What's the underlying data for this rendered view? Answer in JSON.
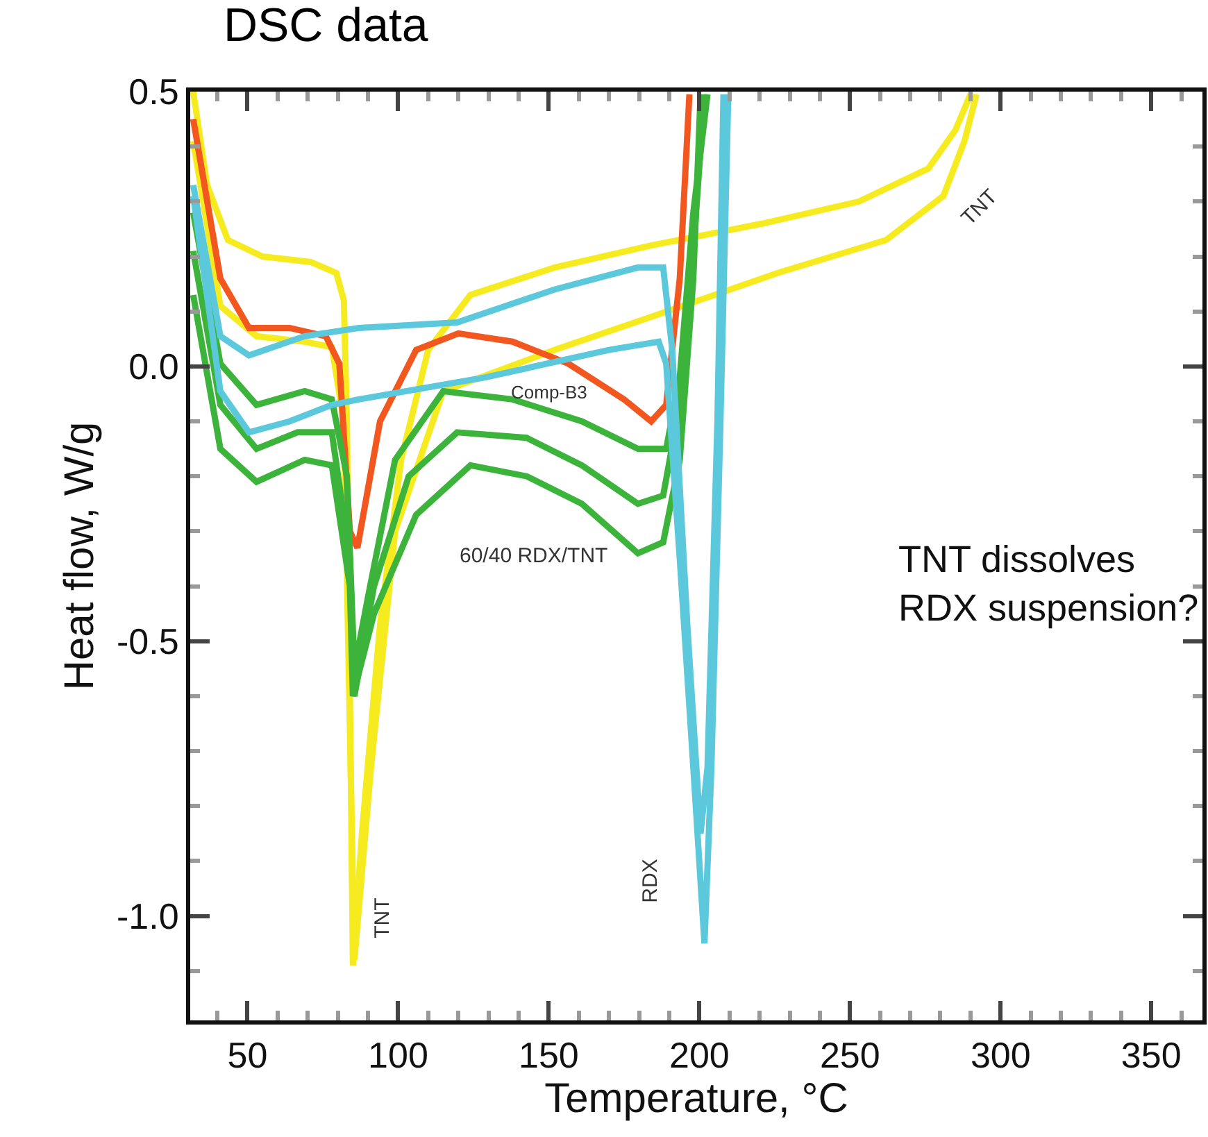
{
  "chart_data": {
    "type": "line",
    "title": "DSC data",
    "xlabel": "Temperature, °C",
    "ylabel": "Heat flow, W/g",
    "xlim": [
      31,
      367
    ],
    "ylim": [
      -1.19,
      0.5
    ],
    "xticks": [
      50,
      100,
      150,
      200,
      250,
      300,
      350
    ],
    "yticks": [
      {
        "value": -1,
        "label": "-1.0"
      },
      {
        "value": -0.5,
        "label": "-0.5"
      },
      {
        "value": 0,
        "label": "0.0"
      },
      {
        "value": 0.5,
        "label": "0.5"
      }
    ],
    "grid": false,
    "marker": "none",
    "line_style": "solid",
    "series": [
      {
        "color": "#f5eb1f",
        "x": [
          32,
          36.6,
          43.5,
          55,
          71,
          79.5,
          82,
          83,
          84,
          85,
          88,
          94,
          101,
          110,
          124,
          152,
          184,
          221,
          253,
          276,
          285,
          290
        ],
        "values": [
          0.5,
          0.33,
          0.23,
          0.2,
          0.19,
          0.17,
          0.12,
          -0.1,
          -0.6,
          -1.09,
          -0.85,
          -0.47,
          -0.17,
          0.03,
          0.13,
          0.18,
          0.22,
          0.26,
          0.3,
          0.36,
          0.43,
          0.495
        ]
      },
      {
        "color": "#f5eb1f",
        "x": [
          32,
          41,
          53,
          69,
          78,
          82,
          85.5,
          91,
          99,
          115,
          152,
          184,
          226,
          262,
          281,
          288,
          292
        ],
        "values": [
          0.41,
          0.11,
          0.055,
          0.045,
          0.035,
          -0.1,
          -1.08,
          -0.73,
          -0.3,
          -0.045,
          0.03,
          0.09,
          0.17,
          0.23,
          0.31,
          0.41,
          0.495
        ]
      },
      {
        "color": "#f2571f",
        "x": [
          32,
          41,
          50.5,
          64,
          76,
          80.5,
          84,
          86.5,
          94,
          106,
          120,
          138,
          156.5,
          175,
          184,
          189,
          193.5,
          196.7
        ],
        "values": [
          0.45,
          0.16,
          0.07,
          0.07,
          0.055,
          0.005,
          -0.3,
          -0.33,
          -0.1,
          0.03,
          0.06,
          0.045,
          0.005,
          -0.06,
          -0.1,
          -0.07,
          0.16,
          0.495
        ]
      },
      {
        "color": "#3cb43c",
        "x": [
          32,
          41,
          53,
          69,
          78,
          83,
          85.5,
          90,
          99,
          115,
          138,
          161,
          179.6,
          189,
          193.5,
          198,
          202.7
        ],
        "values": [
          0.28,
          0.005,
          -0.07,
          -0.045,
          -0.06,
          -0.2,
          -0.55,
          -0.42,
          -0.17,
          -0.045,
          -0.06,
          -0.1,
          -0.15,
          -0.15,
          -0.02,
          0.28,
          0.495
        ]
      },
      {
        "color": "#3cb43c",
        "x": [
          32,
          41,
          53,
          66.6,
          78,
          84,
          85.5,
          92,
          103.5,
          119.6,
          142.7,
          161,
          179.6,
          188,
          193.5,
          198,
          201.7
        ],
        "values": [
          0.21,
          -0.07,
          -0.15,
          -0.12,
          -0.12,
          -0.35,
          -0.6,
          -0.4,
          -0.2,
          -0.12,
          -0.13,
          -0.18,
          -0.25,
          -0.235,
          -0.07,
          0.21,
          0.495
        ]
      },
      {
        "color": "#3cb43c",
        "x": [
          32,
          41,
          53,
          69,
          78,
          84,
          85,
          92,
          106,
          124,
          142.7,
          161,
          179.6,
          188,
          193.5,
          198,
          200.4
        ],
        "values": [
          0.13,
          -0.15,
          -0.21,
          -0.17,
          -0.18,
          -0.4,
          -0.6,
          -0.45,
          -0.27,
          -0.18,
          -0.2,
          -0.25,
          -0.34,
          -0.32,
          -0.17,
          0.16,
          0.495
        ]
      },
      {
        "color": "#5bc8dc",
        "x": [
          32,
          41,
          50.5,
          64,
          78,
          87,
          129,
          170,
          186.5,
          189,
          193.5,
          198,
          201.7,
          204,
          207,
          209.6
        ],
        "values": [
          0.31,
          -0.045,
          -0.12,
          -0.1,
          -0.07,
          -0.06,
          -0.02,
          0.03,
          0.045,
          0.005,
          -0.35,
          -0.73,
          -1.05,
          -0.73,
          -0.1,
          0.495
        ]
      },
      {
        "color": "#5bc8dc",
        "x": [
          32,
          41,
          50.5,
          69,
          87,
          119.6,
          152,
          179.6,
          188,
          191,
          196,
          200.4,
          202.7,
          206,
          208
        ],
        "values": [
          0.33,
          0.055,
          0.02,
          0.055,
          0.07,
          0.08,
          0.14,
          0.18,
          0.18,
          0.03,
          -0.47,
          -0.85,
          -0.73,
          -0.1,
          0.495
        ]
      }
    ],
    "annotations": [
      "TNT",
      "RDX",
      "60/40 RDX/TNT",
      "Comp-B3",
      "TNT",
      "TNT dissolves\nRDX suspension?"
    ]
  }
}
